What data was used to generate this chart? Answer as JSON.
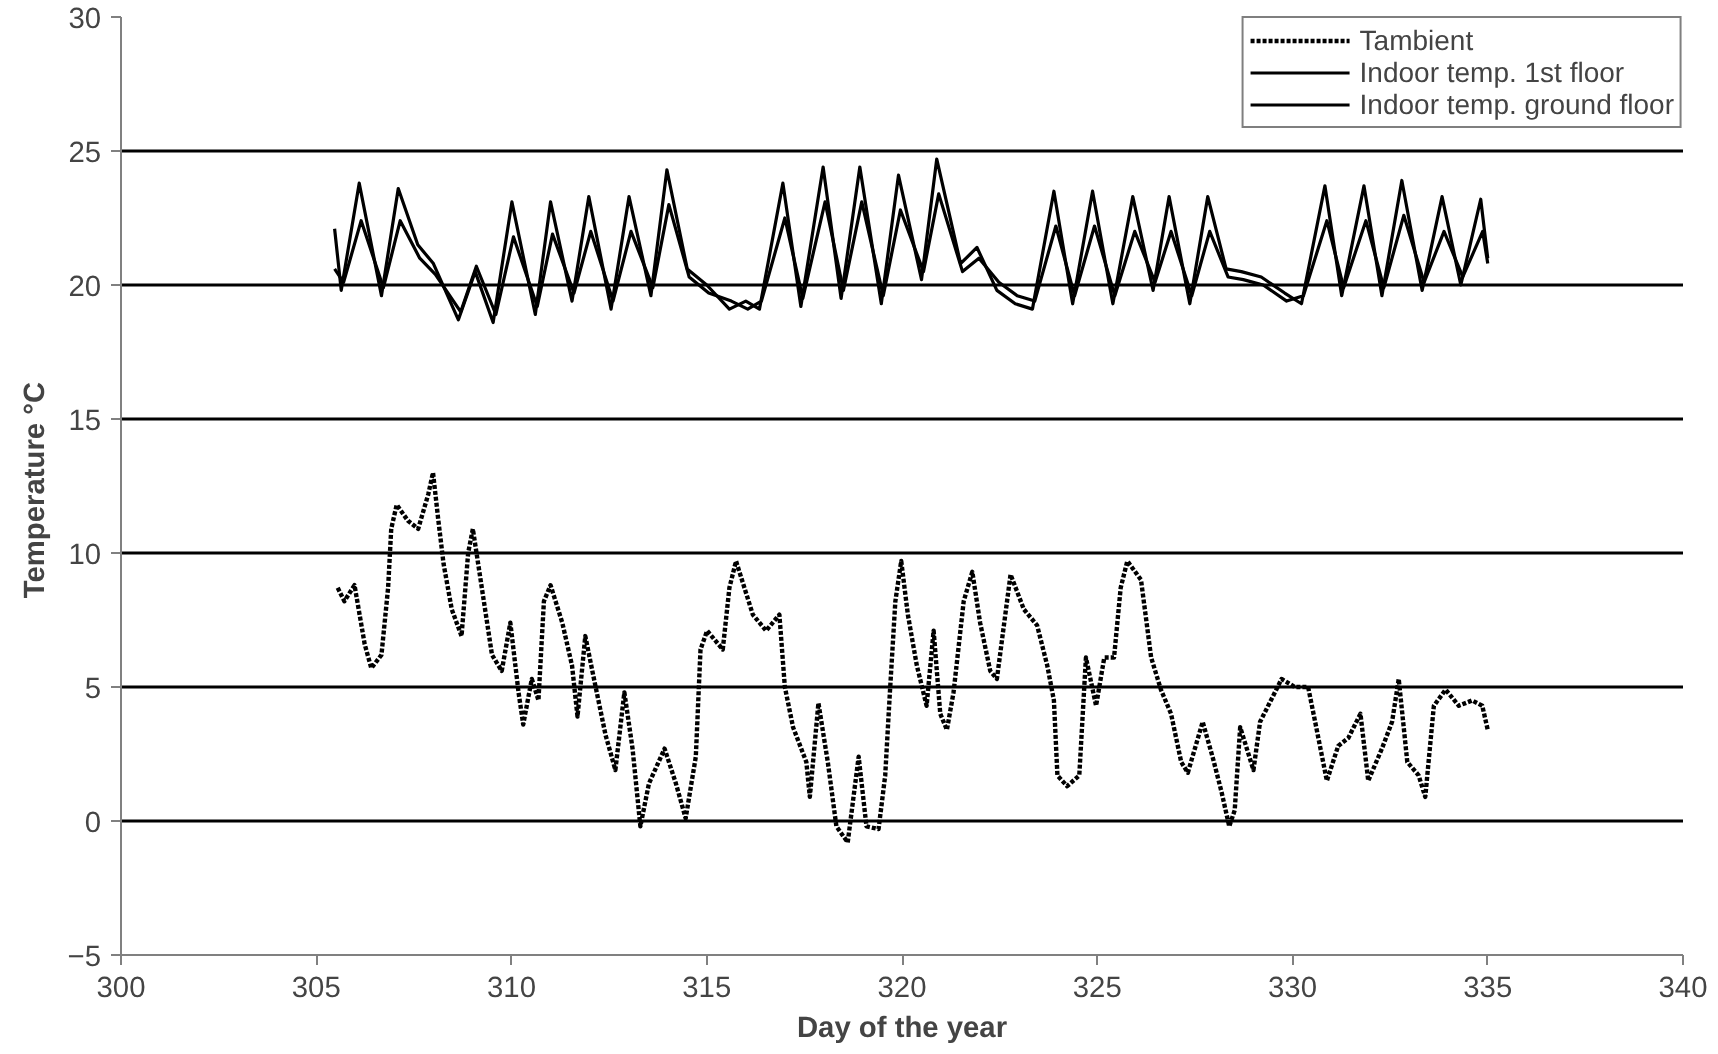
{
  "chart_data": {
    "type": "line",
    "xlabel": "Day of the year",
    "ylabel": "Temperature  °C",
    "xlim": [
      300,
      340
    ],
    "ylim": [
      -5,
      30
    ],
    "xticks": [
      300,
      305,
      310,
      315,
      320,
      325,
      330,
      335,
      340
    ],
    "yticks": [
      -5,
      0,
      5,
      10,
      15,
      20,
      25,
      30
    ],
    "grid": "y",
    "legend": "top right",
    "marker": "none",
    "series": [
      {
        "name": "Tambient",
        "color": "#000000",
        "line_style": "dotted",
        "x": [
          305.55,
          305.72,
          305.98,
          306.24,
          306.41,
          306.67,
          306.84,
          306.92,
          307.06,
          307.35,
          307.61,
          307.87,
          307.99,
          308.12,
          308.26,
          308.47,
          308.72,
          308.89,
          309.01,
          309.24,
          309.5,
          309.75,
          309.97,
          310.18,
          310.3,
          310.52,
          310.69,
          310.83,
          311.0,
          311.3,
          311.55,
          311.69,
          311.89,
          312.07,
          312.41,
          312.66,
          312.89,
          313.1,
          313.3,
          313.52,
          313.92,
          314.21,
          314.46,
          314.72,
          314.84,
          315.01,
          315.41,
          315.58,
          315.75,
          316.18,
          316.52,
          316.86,
          317.0,
          317.21,
          317.55,
          317.64,
          317.86,
          318.1,
          318.32,
          318.61,
          318.89,
          319.09,
          319.4,
          319.57,
          319.69,
          319.83,
          319.98,
          320.15,
          320.38,
          320.63,
          320.81,
          320.98,
          321.15,
          321.32,
          321.58,
          321.8,
          322.0,
          322.26,
          322.43,
          322.78,
          323.12,
          323.46,
          323.72,
          323.89,
          323.98,
          324.23,
          324.54,
          324.71,
          324.97,
          325.18,
          325.43,
          325.6,
          325.77,
          326.12,
          326.38,
          326.63,
          326.89,
          327.15,
          327.32,
          327.7,
          327.97,
          328.18,
          328.38,
          328.52,
          328.66,
          329.0,
          329.17,
          329.55,
          329.72,
          330.06,
          330.4,
          330.58,
          330.88,
          331.17,
          331.43,
          331.74,
          331.94,
          332.29,
          332.55,
          332.72,
          332.94,
          333.23,
          333.4,
          333.62,
          333.92,
          334.26,
          334.6,
          334.86,
          335.0
        ],
        "values": [
          8.7,
          8.2,
          8.8,
          6.6,
          5.7,
          6.2,
          8.7,
          10.9,
          11.8,
          11.2,
          10.9,
          12.2,
          13.0,
          11.3,
          9.6,
          7.9,
          6.9,
          10.0,
          10.9,
          8.7,
          6.2,
          5.6,
          7.4,
          4.8,
          3.6,
          5.3,
          4.5,
          8.2,
          8.8,
          7.4,
          5.8,
          3.9,
          6.9,
          5.6,
          3.2,
          1.9,
          4.8,
          2.7,
          -0.2,
          1.4,
          2.7,
          1.4,
          0.1,
          2.4,
          6.4,
          7.1,
          6.4,
          8.7,
          9.7,
          7.7,
          7.1,
          7.7,
          5.0,
          3.5,
          2.2,
          0.9,
          4.4,
          2.2,
          -0.2,
          -0.8,
          2.4,
          -0.2,
          -0.3,
          1.7,
          4.8,
          8.2,
          9.7,
          7.7,
          5.8,
          4.3,
          7.1,
          4.0,
          3.4,
          4.8,
          8.2,
          9.3,
          7.4,
          5.6,
          5.3,
          9.2,
          7.9,
          7.3,
          5.8,
          4.5,
          1.7,
          1.3,
          1.7,
          6.1,
          4.3,
          6.1,
          6.1,
          8.7,
          9.7,
          9.0,
          6.1,
          4.9,
          4.0,
          2.2,
          1.8,
          3.7,
          2.3,
          1.1,
          -0.2,
          0.4,
          3.5,
          1.9,
          3.7,
          4.8,
          5.3,
          5.0,
          5.0,
          3.7,
          1.5,
          2.8,
          3.1,
          4.0,
          1.5,
          2.7,
          3.7,
          5.3,
          2.2,
          1.7,
          0.9,
          4.3,
          4.9,
          4.3,
          4.5,
          4.3,
          3.4
        ]
      },
      {
        "name": "Indoor temp. 1st floor",
        "color": "#000000",
        "line_style": "solid",
        "x": [
          305.47,
          305.64,
          306.1,
          306.67,
          307.1,
          307.6,
          308.0,
          308.64,
          309.07,
          309.53,
          310.01,
          310.61,
          311.0,
          311.55,
          311.98,
          312.55,
          313.01,
          313.57,
          313.98,
          314.5,
          315.0,
          315.58,
          316.0,
          316.35,
          316.95,
          317.41,
          317.98,
          318.44,
          318.92,
          319.47,
          319.91,
          320.5,
          320.89,
          321.5,
          321.92,
          322.43,
          322.9,
          323.34,
          323.89,
          324.37,
          324.88,
          325.4,
          325.91,
          326.43,
          326.84,
          327.37,
          327.83,
          328.3,
          328.69,
          329.2,
          329.8,
          330.23,
          330.83,
          331.26,
          331.83,
          332.29,
          332.8,
          333.32,
          333.83,
          334.31,
          334.82,
          335.0
        ],
        "values": [
          22.1,
          19.8,
          23.8,
          19.6,
          23.6,
          21.5,
          20.8,
          18.7,
          20.5,
          18.6,
          23.1,
          18.9,
          23.1,
          19.4,
          23.3,
          19.1,
          23.3,
          19.6,
          24.3,
          20.6,
          20.0,
          19.1,
          19.4,
          19.1,
          23.8,
          19.2,
          24.4,
          19.5,
          24.4,
          19.3,
          24.1,
          20.2,
          24.7,
          20.8,
          21.4,
          19.8,
          19.3,
          19.1,
          23.5,
          19.3,
          23.5,
          19.3,
          23.3,
          19.8,
          23.3,
          19.3,
          23.3,
          20.6,
          20.5,
          20.3,
          19.7,
          19.3,
          23.7,
          19.6,
          23.7,
          19.6,
          23.9,
          19.8,
          23.3,
          20.0,
          23.2,
          21.0
        ]
      },
      {
        "name": "Indoor temp. ground floor",
        "color": "#000000",
        "line_style": "solid",
        "x": [
          305.47,
          305.7,
          306.15,
          306.72,
          307.15,
          307.65,
          308.05,
          308.7,
          309.1,
          309.6,
          310.05,
          310.66,
          311.05,
          311.6,
          312.03,
          312.6,
          313.06,
          313.62,
          314.03,
          314.55,
          315.05,
          315.63,
          316.05,
          316.4,
          317.0,
          317.46,
          318.03,
          318.5,
          318.97,
          319.52,
          319.96,
          320.55,
          320.94,
          321.55,
          321.97,
          322.48,
          322.95,
          323.4,
          323.94,
          324.42,
          324.93,
          325.45,
          325.96,
          326.48,
          326.89,
          327.42,
          327.88,
          328.35,
          328.74,
          329.25,
          329.85,
          330.28,
          330.88,
          331.31,
          331.88,
          332.34,
          332.85,
          333.37,
          333.88,
          334.36,
          334.87,
          335.0
        ],
        "values": [
          20.6,
          20.1,
          22.4,
          19.9,
          22.4,
          21.0,
          20.4,
          19.0,
          20.7,
          18.9,
          21.8,
          19.2,
          21.9,
          19.7,
          22.0,
          19.4,
          22.0,
          19.9,
          23.0,
          20.3,
          19.7,
          19.4,
          19.1,
          19.4,
          22.5,
          19.5,
          23.1,
          19.8,
          23.1,
          19.6,
          22.8,
          20.5,
          23.4,
          20.5,
          21.0,
          20.1,
          19.6,
          19.4,
          22.2,
          19.6,
          22.2,
          19.6,
          22.0,
          20.1,
          22.0,
          19.6,
          22.0,
          20.3,
          20.2,
          20.0,
          19.4,
          19.6,
          22.4,
          19.9,
          22.4,
          19.9,
          22.6,
          20.1,
          22.0,
          20.3,
          22.0,
          20.8
        ]
      }
    ]
  }
}
